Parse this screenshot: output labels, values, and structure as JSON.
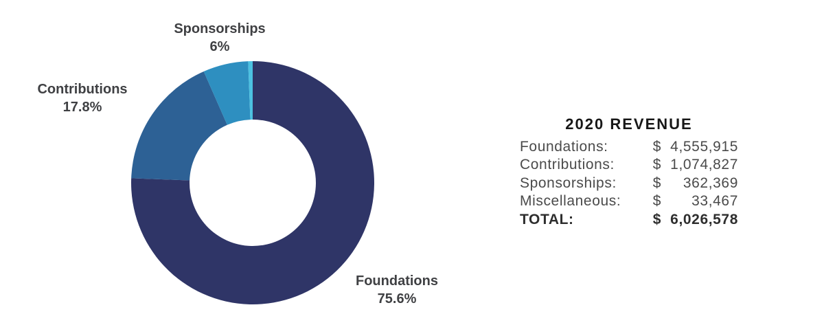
{
  "chart_data": {
    "type": "pie",
    "donut": true,
    "title": "2020 REVENUE",
    "start_angle_deg": 0,
    "direction": "clockwise",
    "legend_position": "none",
    "segments": [
      {
        "label": "Foundations",
        "value": 4555915,
        "pct": 75.6,
        "display_pct": "75.6%",
        "color": "#2f3567",
        "labeled_on_chart": true
      },
      {
        "label": "Contributions",
        "value": 1074827,
        "pct": 17.8,
        "display_pct": "17.8%",
        "color": "#2d6195",
        "labeled_on_chart": true
      },
      {
        "label": "Sponsorships",
        "value": 362369,
        "pct": 6.0,
        "display_pct": "6%",
        "color": "#2e8fc0",
        "labeled_on_chart": true
      },
      {
        "label": "Miscellaneous",
        "value": 33467,
        "pct": 0.6,
        "display_pct": "",
        "color": "#4cc1e1",
        "labeled_on_chart": false
      }
    ],
    "total": 6026578
  },
  "summary": {
    "title": "2020 REVENUE",
    "rows": [
      {
        "label": "Foundations:",
        "currency": "$",
        "amount": "4,555,915"
      },
      {
        "label": "Contributions:",
        "currency": "$",
        "amount": "1,074,827"
      },
      {
        "label": "Sponsorships:",
        "currency": "$",
        "amount": "362,369"
      },
      {
        "label": "Miscellaneous:",
        "currency": "$",
        "amount": "33,467"
      },
      {
        "label": "TOTAL:",
        "currency": "$",
        "amount": "6,026,578"
      }
    ]
  }
}
